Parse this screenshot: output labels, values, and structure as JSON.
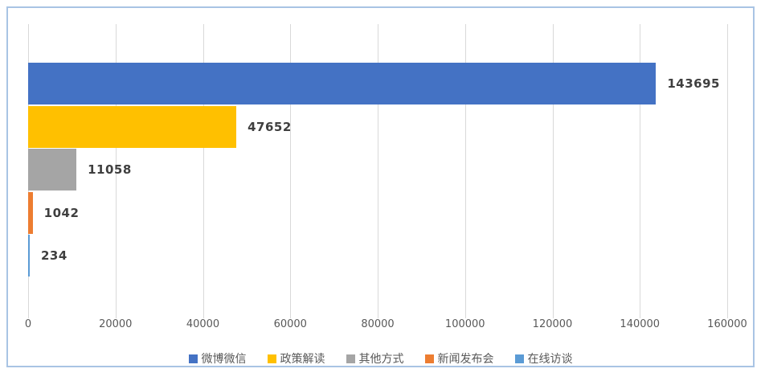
{
  "chart_data": {
    "type": "bar",
    "orientation": "horizontal",
    "title": "",
    "series": [
      {
        "name": "微博微信",
        "value": 143695,
        "color": "#4472c4",
        "label": "143695"
      },
      {
        "name": "政策解读",
        "value": 47652,
        "color": "#ffc000",
        "label": "47652"
      },
      {
        "name": "其他方式",
        "value": 11058,
        "color": "#a5a5a5",
        "label": "11058"
      },
      {
        "name": "新闻发布会",
        "value": 1042,
        "color": "#ed7d31",
        "label": "1042"
      },
      {
        "name": "在线访谈",
        "value": 234,
        "color": "#5b9bd5",
        "label": "234"
      }
    ],
    "x_axis": {
      "min": 0,
      "max": 160000,
      "tick_interval": 20000,
      "tick_labels": [
        "0",
        "20000",
        "40000",
        "60000",
        "80000",
        "100000",
        "120000",
        "140000",
        "160000"
      ]
    },
    "grid": true,
    "data_labels": true,
    "legend_position": "bottom"
  },
  "colors": {
    "gridline": "#d9d9d9",
    "axis_text": "#595959",
    "data_label_text": "#3f3f3f",
    "chart_border": "#a9c4e4",
    "background": "#ffffff"
  }
}
